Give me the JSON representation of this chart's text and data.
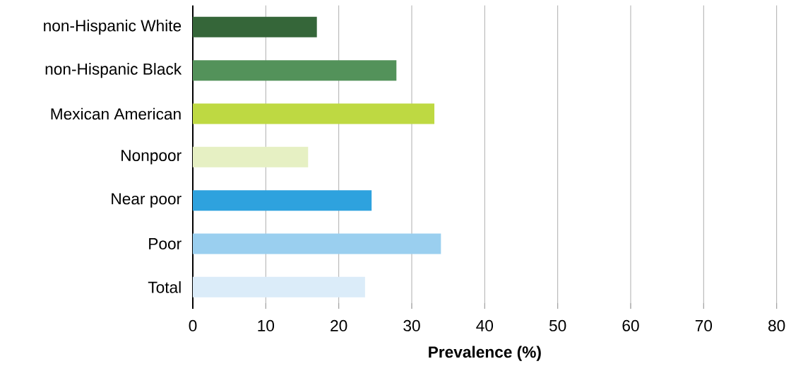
{
  "chart_data": {
    "type": "bar",
    "orientation": "horizontal",
    "xlabel": "Prevalence (%)",
    "categories": [
      "non-Hispanic White",
      "non-Hispanic Black",
      "Mexican American",
      "Nonpoor",
      "Near poor",
      "Poor",
      "Total"
    ],
    "values": [
      17.0,
      27.9,
      33.1,
      15.8,
      24.5,
      34.0,
      23.6
    ],
    "colors": [
      "#356639",
      "#53925a",
      "#bed942",
      "#e6f0c3",
      "#2ea2de",
      "#9acfef",
      "#dbecf9"
    ],
    "xlim": [
      0,
      80
    ],
    "xticks": [
      0,
      10,
      20,
      30,
      40,
      50,
      60,
      70,
      80
    ],
    "grid": "x"
  }
}
